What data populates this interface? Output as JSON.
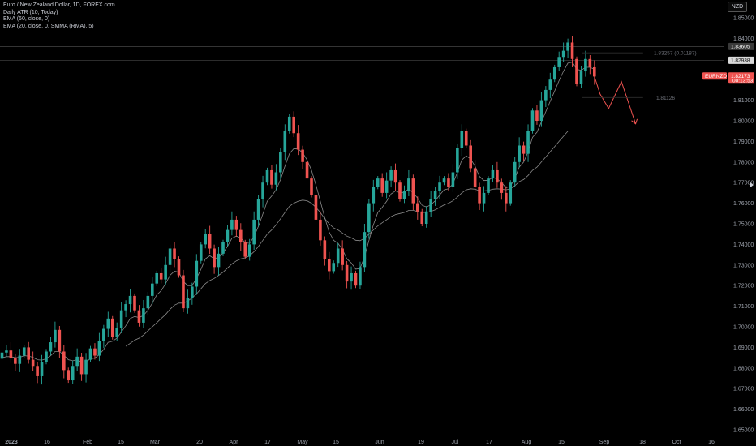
{
  "legend": {
    "symbol": "Euro / New Zealand Dollar, 1D, FOREX.com",
    "atr": "Daily ATR (10, Today)",
    "ema": "EMA (60, close, 0)",
    "ema2": "EMA (20, close, 0, SMMA (RMA), 5)"
  },
  "currency": "NZD",
  "colors": {
    "up": "#26a69a",
    "down": "#ef5350",
    "background": "#000000",
    "ma": "#8a8a8a",
    "projection": "#ef5350"
  },
  "price_tags": [
    {
      "label": "1.83605",
      "price": 1.83605,
      "bg": "#3a3a3a",
      "fg": "#ffffff"
    },
    {
      "label": "1.82938",
      "price": 1.82938,
      "bg": "#d9d9d9",
      "fg": "#000000"
    },
    {
      "label": "1.82173",
      "price": 1.82173,
      "bg": "#ef5350",
      "fg": "#ffffff",
      "sub": "00:13:53"
    }
  ],
  "symbol_tag": "EURNZD",
  "annotations": [
    {
      "text": "1.83257 (0.01187)",
      "price": 1.833
    },
    {
      "text": "1.81126",
      "price": 1.8113
    }
  ],
  "chart_data": {
    "type": "candlestick",
    "title": "Euro / New Zealand Dollar, 1D, FOREX.com",
    "ylim": [
      1.645,
      1.865
    ],
    "y_ticks": [
      "1.65000",
      "1.66000",
      "1.67000",
      "1.68000",
      "1.69000",
      "1.70000",
      "1.71000",
      "1.72000",
      "1.73000",
      "1.74000",
      "1.75000",
      "1.76000",
      "1.77000",
      "1.78000",
      "1.79000",
      "1.80000",
      "1.81000",
      "1.82000",
      "1.83000",
      "1.84000",
      "1.85000"
    ],
    "x_ticks": [
      "2023",
      "16",
      "Feb",
      "15",
      "Mar",
      "20",
      "Apr",
      "17",
      "May",
      "15",
      "Jun",
      "19",
      "Jul",
      "17",
      "Aug",
      "15",
      "Sep",
      "18",
      "Oct",
      "16"
    ],
    "horizontal_lines": [
      1.83605,
      1.82938
    ],
    "closes": [
      1.6875,
      1.6885,
      1.685,
      1.682,
      1.686,
      1.69,
      1.684,
      1.681,
      1.676,
      1.683,
      1.688,
      1.6925,
      1.6985,
      1.688,
      1.679,
      1.674,
      1.681,
      1.6855,
      1.677,
      1.684,
      1.6895,
      1.686,
      1.693,
      1.699,
      1.704,
      1.695,
      1.6995,
      1.708,
      1.711,
      1.715,
      1.708,
      1.702,
      1.709,
      1.715,
      1.721,
      1.726,
      1.723,
      1.73,
      1.738,
      1.733,
      1.725,
      1.709,
      1.714,
      1.7195,
      1.732,
      1.74,
      1.745,
      1.738,
      1.729,
      1.7355,
      1.741,
      1.747,
      1.752,
      1.747,
      1.741,
      1.734,
      1.74,
      1.752,
      1.762,
      1.77,
      1.776,
      1.769,
      1.775,
      1.785,
      1.795,
      1.802,
      1.794,
      1.786,
      1.78,
      1.772,
      1.764,
      1.752,
      1.742,
      1.733,
      1.727,
      1.731,
      1.738,
      1.73,
      1.722,
      1.726,
      1.72,
      1.729,
      1.746,
      1.76,
      1.768,
      1.772,
      1.765,
      1.771,
      1.776,
      1.77,
      1.762,
      1.766,
      1.772,
      1.76,
      1.756,
      1.75,
      1.756,
      1.762,
      1.766,
      1.77,
      1.772,
      1.768,
      1.775,
      1.787,
      1.795,
      1.788,
      1.777,
      1.768,
      1.76,
      1.765,
      1.772,
      1.776,
      1.77,
      1.765,
      1.76,
      1.77,
      1.78,
      1.788,
      1.784,
      1.795,
      1.805,
      1.8,
      1.81,
      1.815,
      1.82,
      1.826,
      1.831,
      1.834,
      1.838,
      1.83,
      1.818,
      1.824,
      1.83,
      1.826,
      1.8215
    ],
    "ema_fast": [
      1.685,
      1.6855,
      1.6855,
      1.685,
      1.6852,
      1.686,
      1.6858,
      1.6852,
      1.684,
      1.6838,
      1.6845,
      1.686,
      1.688,
      1.688,
      1.6862,
      1.684,
      1.6835,
      1.684,
      1.6828,
      1.683,
      1.6845,
      1.6848,
      1.6865,
      1.689,
      1.6925,
      1.693,
      1.6945,
      1.6975,
      1.7005,
      1.704,
      1.705,
      1.7045,
      1.7055,
      1.708,
      1.7115,
      1.7155,
      1.7175,
      1.721,
      1.725,
      1.727,
      1.7265,
      1.722,
      1.72,
      1.72,
      1.7235,
      1.728,
      1.733,
      1.7345,
      1.733,
      1.7338,
      1.7358,
      1.739,
      1.743,
      1.744,
      1.7432,
      1.7408,
      1.7405,
      1.7438,
      1.7488,
      1.7548,
      1.761,
      1.7635,
      1.7665,
      1.7715,
      1.778,
      1.784,
      1.7865,
      1.7863,
      1.7845,
      1.781,
      1.776,
      1.769,
      1.761,
      1.753,
      1.746,
      1.742,
      1.7405,
      1.7375,
      1.733,
      1.731,
      1.728,
      1.7283,
      1.734,
      1.742,
      1.7495,
      1.7555,
      1.758,
      1.761,
      1.7645,
      1.766,
      1.765,
      1.7652,
      1.767,
      1.765,
      1.7625,
      1.759,
      1.7582,
      1.7592,
      1.7612,
      1.764,
      1.7665,
      1.767,
      1.7695,
      1.775,
      1.781,
      1.783,
      1.7815,
      1.778,
      1.773,
      1.771,
      1.7712,
      1.7725,
      1.7718,
      1.77,
      1.7675,
      1.7683,
      1.772,
      1.7775,
      1.78,
      1.785,
      1.792,
      1.7945,
      1.7995,
      1.8045,
      1.8095,
      1.8145,
      1.8195,
      1.824,
      1.828,
      1.8285,
      1.825,
      1.8245,
      1.826,
      1.826,
      1.825
    ],
    "ema_slow": [
      null,
      null,
      null,
      null,
      null,
      null,
      null,
      null,
      null,
      null,
      null,
      null,
      null,
      null,
      null,
      null,
      null,
      null,
      null,
      null,
      null,
      null,
      null,
      null,
      null,
      null,
      null,
      null,
      1.6905,
      1.692,
      1.6935,
      1.6945,
      1.696,
      1.698,
      1.7,
      1.702,
      1.704,
      1.706,
      1.7085,
      1.7105,
      1.7115,
      1.7115,
      1.7125,
      1.714,
      1.716,
      1.7185,
      1.721,
      1.7225,
      1.7235,
      1.725,
      1.7265,
      1.7285,
      1.7305,
      1.732,
      1.733,
      1.7335,
      1.7345,
      1.7365,
      1.739,
      1.742,
      1.745,
      1.747,
      1.7495,
      1.7525,
      1.7555,
      1.7585,
      1.76,
      1.761,
      1.7615,
      1.7612,
      1.76,
      1.758,
      1.7555,
      1.7525,
      1.75,
      1.748,
      1.747,
      1.7455,
      1.744,
      1.7432,
      1.742,
      1.7418,
      1.743,
      1.745,
      1.747,
      1.749,
      1.7505,
      1.752,
      1.7535,
      1.7545,
      1.755,
      1.7555,
      1.7565,
      1.7565,
      1.756,
      1.7555,
      1.7555,
      1.756,
      1.7568,
      1.758,
      1.7592,
      1.76,
      1.7612,
      1.763,
      1.765,
      1.7665,
      1.767,
      1.7668,
      1.766,
      1.766,
      1.7662,
      1.7668,
      1.767,
      1.7668,
      1.7665,
      1.767,
      1.7685,
      1.7705,
      1.7715,
      1.7735,
      1.776,
      1.7775,
      1.78,
      1.7825,
      1.785,
      1.7875,
      1.79,
      1.7925,
      1.795,
      null,
      null,
      null,
      null,
      null,
      null
    ],
    "projection": [
      [
        1.8215,
        0
      ],
      [
        1.813,
        4
      ],
      [
        1.806,
        10
      ],
      [
        1.819,
        19
      ],
      [
        1.7985,
        29
      ]
    ]
  }
}
